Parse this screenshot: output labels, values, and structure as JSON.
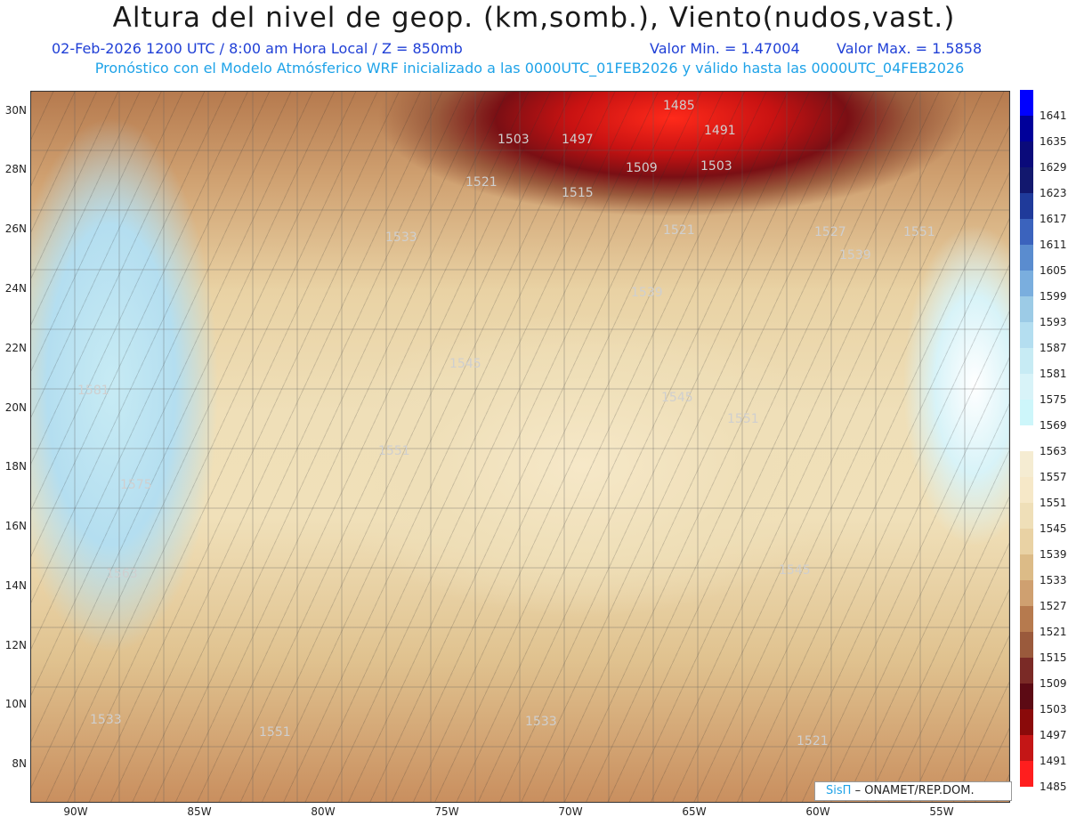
{
  "header": {
    "title": "Altura del nivel de geop. (km,somb.), Viento(nudos,vast.)",
    "date_line": "02-Feb-2026  1200 UTC / 8:00 am Hora Local / Z = 850mb",
    "min_line": "Valor Min. = 1.47004",
    "max_line": "Valor Max. = 1.5858",
    "forecast_line": "Pronóstico con el Modelo Atmósferico WRF inicializado a las 0000UTC_01FEB2026 y válido hasta las  0000UTC_04FEB2026"
  },
  "axes": {
    "lat_ticks": [
      "30N",
      "28N",
      "26N",
      "24N",
      "22N",
      "20N",
      "18N",
      "16N",
      "14N",
      "12N",
      "10N",
      "8N"
    ],
    "lon_ticks": [
      "90W",
      "85W",
      "80W",
      "75W",
      "70W",
      "65W",
      "60W",
      "55W"
    ]
  },
  "colorbar": {
    "levels": [
      "1641",
      "1635",
      "1629",
      "1623",
      "1617",
      "1611",
      "1605",
      "1599",
      "1593",
      "1587",
      "1581",
      "1575",
      "1569",
      "1563",
      "1557",
      "1551",
      "1545",
      "1539",
      "1533",
      "1527",
      "1521",
      "1515",
      "1509",
      "1503",
      "1497",
      "1491",
      "1485"
    ],
    "colors": [
      "#0000ff",
      "#00009a",
      "#0a0a7a",
      "#12186e",
      "#1f3a9a",
      "#3b63bd",
      "#5a8ccf",
      "#7aaede",
      "#9ccbe6",
      "#b4def0",
      "#c7ebf4",
      "#d8f3f8",
      "#cdf6fa",
      "#ffffff",
      "#f5ecd2",
      "#f6e8c8",
      "#efdfb8",
      "#e9d2a4",
      "#dcbb87",
      "#cfa070",
      "#b67a4e",
      "#9a5a3c",
      "#7a2a26",
      "#5c0a14",
      "#8a0a0a",
      "#c41616",
      "#ff1e1e"
    ]
  },
  "contour_labels": [
    "1485",
    "1491",
    "1497",
    "1503",
    "1503",
    "1509",
    "1515",
    "1521",
    "1521",
    "1527",
    "1533",
    "1539",
    "1539",
    "1545",
    "1545",
    "1545",
    "1551",
    "1551",
    "1551",
    "1551",
    "1563",
    "1575",
    "1581",
    "1533",
    "1533",
    "1521"
  ],
  "credit": {
    "brand": "SisΠ",
    "org": "– ONAMET/REP.DOM."
  }
}
